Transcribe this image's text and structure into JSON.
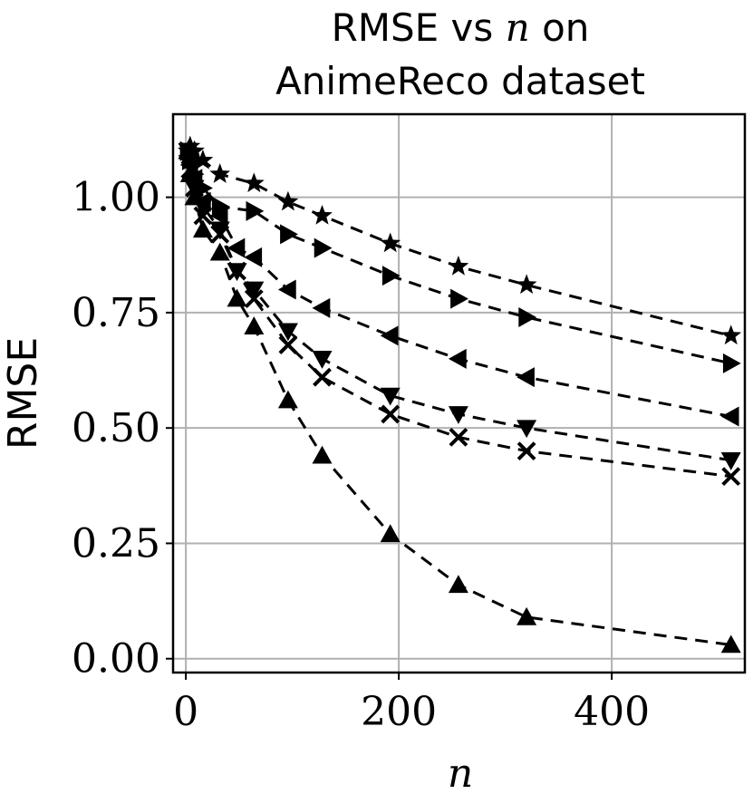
{
  "chart_data": {
    "type": "line",
    "title_line1_prefix": "RMSE vs ",
    "title_line1_var": "n",
    "title_line1_suffix": " on",
    "title_line2": "AnimeReco dataset",
    "xlabel": "n",
    "ylabel": "RMSE",
    "xlim": [
      -12,
      525
    ],
    "ylim": [
      -0.03,
      1.18
    ],
    "xticks": [
      0,
      200,
      400
    ],
    "xtick_labels": [
      "0",
      "200",
      "400"
    ],
    "yticks": [
      0.0,
      0.25,
      0.5,
      0.75,
      1.0
    ],
    "ytick_labels": [
      "0.00",
      "0.25",
      "0.50",
      "0.75",
      "1.00"
    ],
    "grid": true,
    "line_style": "dashed",
    "color": "#000000",
    "series": [
      {
        "marker": "star",
        "x": [
          2,
          4,
          8,
          16,
          32,
          64,
          96,
          128,
          192,
          256,
          320,
          512
        ],
        "y": [
          1.1,
          1.11,
          1.1,
          1.08,
          1.05,
          1.03,
          0.99,
          0.96,
          0.9,
          0.85,
          0.81,
          0.7
        ]
      },
      {
        "marker": "triangle-right",
        "x": [
          2,
          4,
          8,
          16,
          32,
          64,
          96,
          128,
          192,
          256,
          320,
          512
        ],
        "y": [
          1.1,
          1.08,
          1.05,
          1.02,
          0.98,
          0.97,
          0.92,
          0.89,
          0.83,
          0.78,
          0.74,
          0.64
        ]
      },
      {
        "marker": "triangle-left",
        "x": [
          2,
          4,
          8,
          16,
          32,
          48,
          64,
          96,
          128,
          192,
          256,
          320,
          512
        ],
        "y": [
          1.09,
          1.07,
          1.04,
          0.99,
          0.96,
          0.89,
          0.87,
          0.8,
          0.76,
          0.7,
          0.65,
          0.61,
          0.525
        ]
      },
      {
        "marker": "triangle-down",
        "x": [
          2,
          4,
          8,
          16,
          32,
          48,
          64,
          96,
          128,
          192,
          256,
          320,
          512
        ],
        "y": [
          1.1,
          1.07,
          1.02,
          0.98,
          0.93,
          0.84,
          0.8,
          0.71,
          0.65,
          0.57,
          0.53,
          0.5,
          0.43
        ]
      },
      {
        "marker": "x",
        "x": [
          2,
          4,
          8,
          16,
          32,
          48,
          64,
          96,
          128,
          192,
          256,
          320,
          512
        ],
        "y": [
          1.1,
          1.06,
          1.02,
          0.96,
          0.92,
          0.84,
          0.78,
          0.68,
          0.61,
          0.53,
          0.48,
          0.45,
          0.395
        ]
      },
      {
        "marker": "triangle-up",
        "x": [
          2,
          4,
          8,
          16,
          32,
          48,
          64,
          96,
          128,
          192,
          256,
          320,
          512
        ],
        "y": [
          1.1,
          1.05,
          1.0,
          0.93,
          0.88,
          0.78,
          0.72,
          0.56,
          0.44,
          0.27,
          0.16,
          0.09,
          0.03
        ]
      }
    ]
  }
}
